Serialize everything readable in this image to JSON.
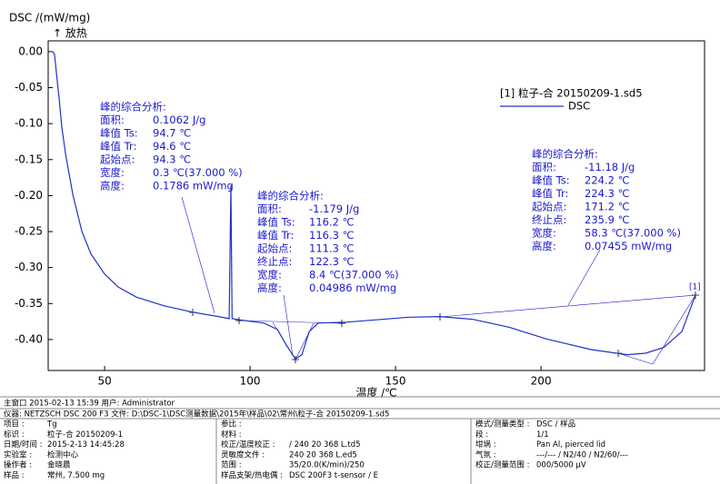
{
  "chart_data": {
    "type": "line",
    "y_label": "DSC /(mW/mg)",
    "y_note": "↑ 放热",
    "x_label": "温度 /℃",
    "legend_title": "[1] 粒子-合  20150209-1.sd5",
    "end_label": "[1]",
    "xlim": [
      30.6,
      256.2
    ],
    "ylim": [
      -0.443,
      0.015
    ],
    "xticks": [
      50,
      100,
      150,
      200
    ],
    "yticks": [
      {
        "value": 0,
        "label": "0.00"
      },
      {
        "value": -0.05,
        "label": "-0.05"
      },
      {
        "value": -0.1,
        "label": "-0.10"
      },
      {
        "value": -0.15,
        "label": "-0.15"
      },
      {
        "value": -0.2,
        "label": "-0.20"
      },
      {
        "value": -0.25,
        "label": "-0.25"
      },
      {
        "value": -0.3,
        "label": "-0.30"
      },
      {
        "value": -0.35,
        "label": "-0.35"
      },
      {
        "value": -0.4,
        "label": "-0.40"
      }
    ],
    "series": [
      {
        "name": "DSC",
        "color": "#2030c8",
        "x": [
          32.2,
          32.8,
          33.4,
          34.4,
          35.3,
          36.6,
          39.1,
          42.2,
          45.3,
          50,
          54.7,
          60.9,
          70.3,
          80.3,
          89.1,
          92.8,
          93.4,
          93.8,
          96.9,
          104.7,
          109.4,
          112.5,
          115.6,
          117.8,
          120.3,
          123.4,
          132.8,
          145.3,
          154.7,
          165.3,
          176.6,
          189.1,
          201.6,
          217.2,
          229.7,
          235.9,
          242.2,
          248.4,
          253.1
        ],
        "values": [
          0,
          -0.004,
          -0.029,
          -0.067,
          -0.105,
          -0.143,
          -0.199,
          -0.25,
          -0.281,
          -0.309,
          -0.327,
          -0.341,
          -0.353,
          -0.362,
          -0.368,
          -0.371,
          -0.186,
          -0.371,
          -0.373,
          -0.377,
          -0.386,
          -0.408,
          -0.427,
          -0.421,
          -0.389,
          -0.377,
          -0.376,
          -0.372,
          -0.369,
          -0.368,
          -0.372,
          -0.383,
          -0.399,
          -0.414,
          -0.421,
          -0.419,
          -0.411,
          -0.389,
          -0.338
        ]
      }
    ],
    "annotations": [
      {
        "title": "峰的综合分析:",
        "rows": [
          [
            "面积:",
            "0.1062 J/g"
          ],
          [
            "峰值 Ts:",
            "94.7 ℃"
          ],
          [
            "峰值 Tr:",
            "94.6 ℃"
          ],
          [
            "起始点:",
            "94.3 ℃"
          ],
          [
            "宽度:",
            "0.3 ℃(37.000 %)"
          ],
          [
            "高度:",
            "0.1786 mW/mg"
          ]
        ]
      },
      {
        "title": "峰的综合分析:",
        "rows": [
          [
            "面积:",
            "-1.179 J/g"
          ],
          [
            "峰值 Ts:",
            "116.2 ℃"
          ],
          [
            "峰值 Tr:",
            "116.3 ℃"
          ],
          [
            "起始点:",
            "111.3 ℃"
          ],
          [
            "终止点:",
            "122.3 ℃"
          ],
          [
            "宽度:",
            "8.4 ℃(37.000 %)"
          ],
          [
            "高度:",
            "0.04986 mW/mg"
          ]
        ]
      },
      {
        "title": "峰的综合分析:",
        "rows": [
          [
            "面积:",
            "-11.18 J/g"
          ],
          [
            "峰值 Ts:",
            "224.2 ℃"
          ],
          [
            "峰值 Tr:",
            "224.3 ℃"
          ],
          [
            "起始点:",
            "171.2 ℃"
          ],
          [
            "终止点:",
            "235.9 ℃"
          ],
          [
            "宽度:",
            "58.3 ℃(37.000 %)"
          ],
          [
            "高度:",
            "0.07455 mW/mg"
          ]
        ]
      }
    ]
  },
  "footer": {
    "status": "主窗口   2015-02-13 15:39   用户: Administrator",
    "instrument": "仪器:  NETZSCH DSC 200 F3     文件:   D:\\DSC-1\\DSC测量数据\\2015年\\样品\\02\\常州\\粒子-合  20150209-1.sd5",
    "columns": [
      [
        [
          "项目 :",
          "Tg"
        ],
        [
          "标识 :",
          "粒子-合 20150209-1"
        ],
        [
          "日期/时间 :",
          "2015-2-13 14:45:28"
        ],
        [
          "实验室 :",
          "检测中心"
        ],
        [
          "操作者 :",
          "金晓晨"
        ],
        [
          "样品 :",
          "常州, 7.500 mg"
        ]
      ],
      [
        [
          "参比 :"
        ],
        [
          "材料 :"
        ],
        [
          "校正/温度校正 :",
          "/ 240 20 368 L.td5"
        ],
        [
          "灵敏度文件 :",
          "240 20 368 L.ed5"
        ],
        [
          "范围 :",
          "35/20.0(K/min)/250"
        ],
        [
          "样品支架/热电偶 :",
          "DSC 200F3 t-sensor / E"
        ]
      ],
      [
        [
          "模式/测量类型 :",
          "DSC / 样品"
        ],
        [
          "段 :",
          "1/1"
        ],
        [
          "坩埚 :",
          "Pan Al, pierced lid"
        ],
        [
          "气氛 :",
          "---/--- / N2/40 / N2/60/---"
        ],
        [
          "校正/测量范围 :",
          "000/5000 µV"
        ]
      ]
    ]
  }
}
